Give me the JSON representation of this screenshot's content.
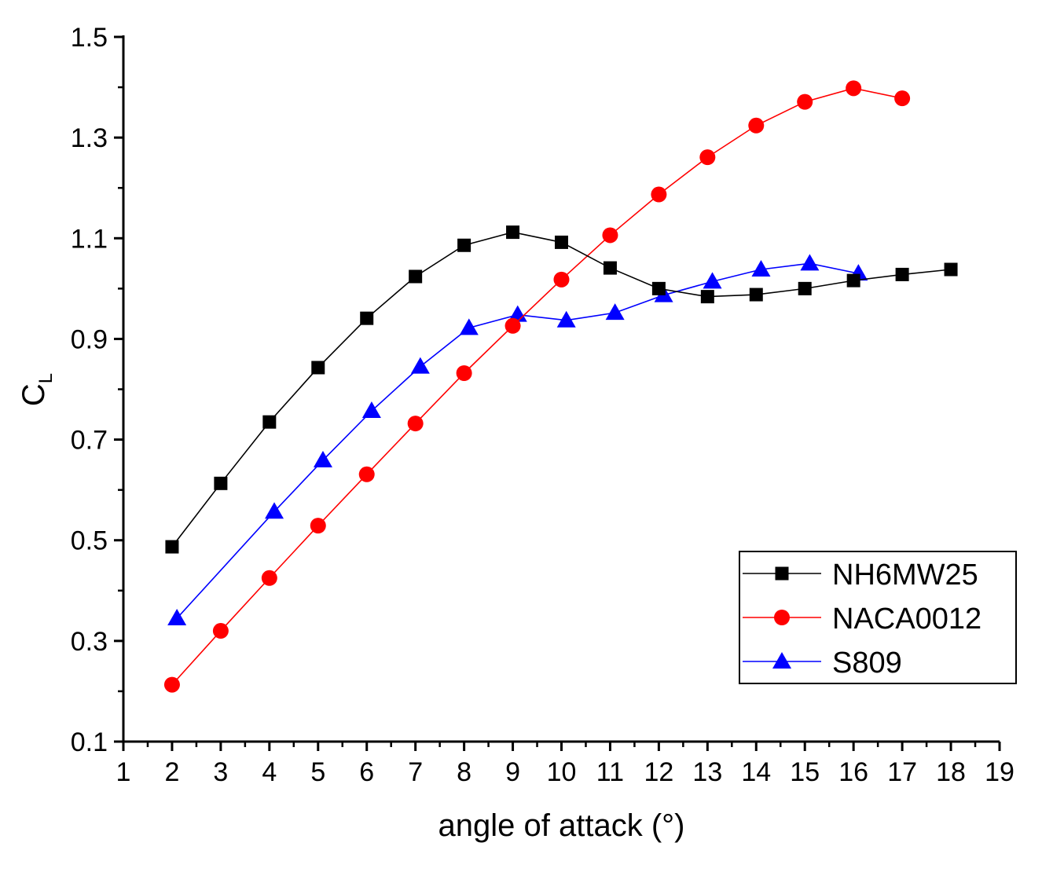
{
  "chart_data": {
    "type": "line",
    "title": "",
    "xlabel": "angle of attack (°)",
    "ylabel_main": "C",
    "ylabel_sub": "L",
    "xlim": [
      1,
      19
    ],
    "ylim": [
      0.1,
      1.5
    ],
    "xticks": [
      1,
      2,
      3,
      4,
      5,
      6,
      7,
      8,
      9,
      10,
      11,
      12,
      13,
      14,
      15,
      16,
      17,
      18,
      19
    ],
    "yticks": [
      "0.1",
      "0.3",
      "0.5",
      "0.7",
      "0.9",
      "1.1",
      "1.3",
      "1.5"
    ],
    "grid": false,
    "legend_position": "bottom-right",
    "series": [
      {
        "name": "NH6MW25",
        "color": "#000000",
        "marker": "square",
        "x": [
          2,
          3,
          4,
          5,
          6,
          7,
          8,
          9,
          10,
          11,
          12,
          13,
          14,
          15,
          16,
          17,
          18
        ],
        "y": [
          0.487,
          0.613,
          0.735,
          0.843,
          0.941,
          1.024,
          1.086,
          1.112,
          1.092,
          1.041,
          1.0,
          0.984,
          0.988,
          1.0,
          1.016,
          1.028,
          1.038
        ]
      },
      {
        "name": "NACA0012",
        "color": "#ff0000",
        "marker": "circle",
        "x": [
          2,
          3,
          4,
          5,
          6,
          7,
          8,
          9,
          10,
          11,
          12,
          13,
          14,
          15,
          16,
          17
        ],
        "y": [
          0.213,
          0.32,
          0.425,
          0.529,
          0.631,
          0.732,
          0.832,
          0.926,
          1.018,
          1.106,
          1.187,
          1.261,
          1.324,
          1.371,
          1.398,
          1.378
        ]
      },
      {
        "name": "S809",
        "color": "#0000ff",
        "marker": "triangle",
        "x": [
          2.1,
          4.1,
          5.1,
          6.1,
          7.1,
          8.1,
          9.1,
          10.1,
          11.1,
          12.1,
          13.1,
          14.1,
          15.1,
          16.1
        ],
        "y": [
          0.345,
          0.557,
          0.659,
          0.757,
          0.845,
          0.922,
          0.948,
          0.937,
          0.952,
          0.987,
          1.014,
          1.038,
          1.05,
          1.03
        ]
      }
    ]
  }
}
